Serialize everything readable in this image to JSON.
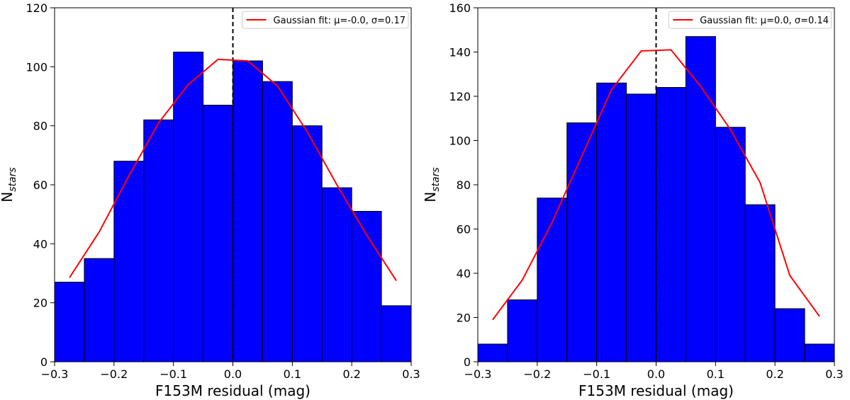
{
  "chart_data": [
    {
      "type": "bar",
      "xlabel": "F153M residual (mag)",
      "ylabel": "N",
      "ylabel_sub": "stars",
      "xlim": [
        -0.3,
        0.3
      ],
      "ylim": [
        0,
        120
      ],
      "xticks": [
        -0.3,
        -0.2,
        -0.1,
        0.0,
        0.1,
        0.2,
        0.3
      ],
      "xtick_labels": [
        "−0.3",
        "−0.2",
        "−0.1",
        "0.0",
        "0.1",
        "0.2",
        "0.3"
      ],
      "yticks": [
        0,
        20,
        40,
        60,
        80,
        100,
        120
      ],
      "ytick_labels": [
        "0",
        "20",
        "40",
        "60",
        "80",
        "100",
        "120"
      ],
      "bin_edges": [
        -0.3,
        -0.25,
        -0.2,
        -0.15,
        -0.1,
        -0.05,
        0.0,
        0.05,
        0.1,
        0.15,
        0.2,
        0.25,
        0.3
      ],
      "values": [
        27,
        35,
        68,
        82,
        105,
        87,
        102,
        95,
        80,
        59,
        51,
        19
      ],
      "bar_color": "#0000ff",
      "series": [
        {
          "name": "Gaussian fit: μ=-0.0, σ=0.17",
          "color": "#ff0000",
          "x": [
            -0.275,
            -0.225,
            -0.175,
            -0.125,
            -0.075,
            -0.025,
            0.025,
            0.075,
            0.125,
            0.175,
            0.225,
            0.275
          ],
          "y": [
            28.5,
            44,
            63,
            81,
            94,
            102.5,
            102,
            93.5,
            78,
            60,
            43,
            27.5
          ]
        }
      ],
      "reference_line_x": 0.0,
      "legend": {
        "label": "Gaussian fit: μ=-0.0, σ=0.17",
        "placement": "top-right"
      }
    },
    {
      "type": "bar",
      "xlabel": "F153M residual (mag)",
      "ylabel": "N",
      "ylabel_sub": "stars",
      "xlim": [
        -0.3,
        0.3
      ],
      "ylim": [
        0,
        160
      ],
      "xticks": [
        -0.3,
        -0.2,
        -0.1,
        0.0,
        0.1,
        0.2,
        0.3
      ],
      "xtick_labels": [
        "−0.3",
        "−0.2",
        "−0.1",
        "0.0",
        "0.1",
        "0.2",
        "0.3"
      ],
      "yticks": [
        0,
        20,
        40,
        60,
        80,
        100,
        120,
        140,
        160
      ],
      "ytick_labels": [
        "0",
        "20",
        "40",
        "60",
        "80",
        "100",
        "120",
        "140",
        "160"
      ],
      "bin_edges": [
        -0.3,
        -0.25,
        -0.2,
        -0.15,
        -0.1,
        -0.05,
        0.0,
        0.05,
        0.1,
        0.15,
        0.2,
        0.25,
        0.3
      ],
      "values": [
        8,
        28,
        74,
        108,
        126,
        121,
        124,
        147,
        106,
        71,
        24,
        8
      ],
      "bar_color": "#0000ff",
      "series": [
        {
          "name": "Gaussian fit: μ=0.0, σ=0.14",
          "color": "#ff0000",
          "x": [
            -0.275,
            -0.225,
            -0.175,
            -0.125,
            -0.075,
            -0.025,
            0.025,
            0.075,
            0.125,
            0.175,
            0.225,
            0.275
          ],
          "y": [
            19,
            37,
            63,
            93,
            123,
            140.5,
            141,
            124.5,
            105,
            81,
            39,
            20.5
          ]
        }
      ],
      "reference_line_x": 0.0,
      "legend": {
        "label": "Gaussian fit: μ=0.0, σ=0.14",
        "placement": "top-right"
      }
    }
  ]
}
